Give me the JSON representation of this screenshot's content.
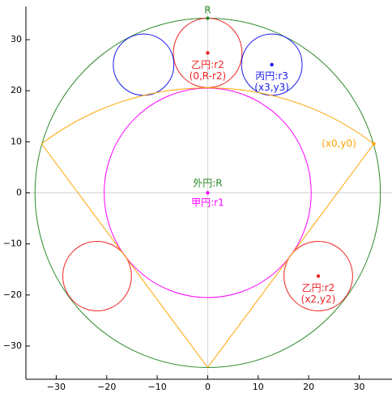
{
  "chart_data": {
    "type": "geometry",
    "xlim": [
      -36,
      36.5
    ],
    "ylim": [
      -36.5,
      36.5
    ],
    "grid": false,
    "x_ticks": [
      -30,
      -20,
      -10,
      0,
      10,
      20,
      30
    ],
    "y_ticks": [
      -30,
      -20,
      -10,
      0,
      10,
      20,
      30
    ],
    "axis_lines": {
      "color": "#d3d3d3"
    },
    "colors": {
      "outer": "#2a8a2a",
      "kou": "#ff00ff",
      "otsu": "#ee2222",
      "hei": "#1a1aee",
      "arc": "#ffa500"
    },
    "outer_circle": {
      "cx": 0,
      "cy": 0,
      "r": 34.2
    },
    "kou_circle": {
      "cx": 0,
      "cy": 0,
      "r": 20.5
    },
    "otsu_circles": [
      {
        "cx": 0,
        "cy": 27.4,
        "r": 6.8
      },
      {
        "cx": 21.9,
        "cy": -16.3,
        "r": 6.8
      },
      {
        "cx": -21.9,
        "cy": -16.3,
        "r": 6.8
      }
    ],
    "hei_circles": [
      {
        "cx": 12.7,
        "cy": 25.1,
        "r": 6.0
      },
      {
        "cx": -12.7,
        "cy": 25.1,
        "r": 6.0
      }
    ],
    "arc": {
      "cx": 0,
      "cy": -34.2,
      "r": 54.8,
      "from": [
        -32.9,
        9.6
      ],
      "to": [
        32.9,
        9.6
      ]
    },
    "lines": [
      {
        "from": [
          -32.9,
          9.6
        ],
        "to": [
          0,
          -34.2
        ]
      },
      {
        "from": [
          32.9,
          9.6
        ],
        "to": [
          0,
          -34.2
        ]
      }
    ],
    "points": [
      {
        "x": 0,
        "y": 34.2,
        "color": "outer"
      },
      {
        "x": 0,
        "y": 27.4,
        "color": "otsu"
      },
      {
        "x": 12.7,
        "y": 25.1,
        "color": "hei"
      },
      {
        "x": 21.9,
        "y": -16.3,
        "color": "otsu"
      },
      {
        "x": 32.9,
        "y": 9.6,
        "color": "arc"
      },
      {
        "x": 0,
        "y": 0,
        "color": "kou"
      }
    ],
    "annotations": [
      {
        "text": "R",
        "x": 0,
        "y": 35.7,
        "color": "outer"
      },
      {
        "text": "乙円:r2",
        "x": 0,
        "y": 25.0,
        "color": "otsu"
      },
      {
        "text": "(0,R-r2)",
        "x": 0,
        "y": 22.8,
        "color": "otsu"
      },
      {
        "text": "丙円:r3",
        "x": 12.7,
        "y": 22.8,
        "color": "hei"
      },
      {
        "text": "(x3,y3)",
        "x": 12.7,
        "y": 20.6,
        "color": "hei"
      },
      {
        "text": "(x0,y0)",
        "x": 26.0,
        "y": 9.6,
        "color": "arc"
      },
      {
        "text": "外円:R",
        "x": 0,
        "y": 1.8,
        "color": "outer"
      },
      {
        "text": "甲円:r1",
        "x": 0,
        "y": -2.0,
        "color": "kou"
      },
      {
        "text": "乙円:r2",
        "x": 21.9,
        "y": -18.7,
        "color": "otsu"
      },
      {
        "text": "(x2,y2)",
        "x": 21.9,
        "y": -20.9,
        "color": "otsu"
      }
    ]
  }
}
